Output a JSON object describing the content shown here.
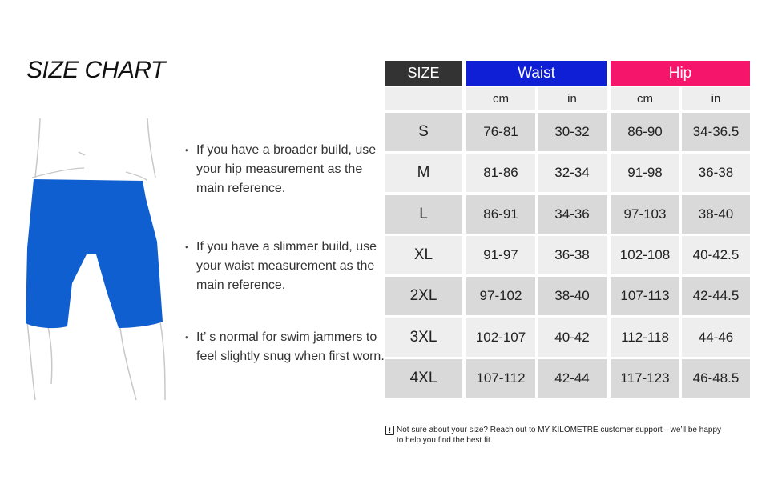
{
  "title": "SIZE CHART",
  "notes": [
    "If you have a broader build, use your hip measurement as the main reference.",
    "If you have a slimmer build, use your waist measurement as the main reference.",
    "It’ s normal for swim jammers to feel slightly snug when first worn."
  ],
  "bullet": "•",
  "table": {
    "headers": {
      "size": "SIZE",
      "waist": "Waist",
      "hip": "Hip"
    },
    "subheaders": [
      "cm",
      "in",
      "cm",
      "in"
    ],
    "rows": [
      [
        "S",
        "76-81",
        "30-32",
        "86-90",
        "34-36.5"
      ],
      [
        "M",
        "81-86",
        "32-34",
        "91-98",
        "36-38"
      ],
      [
        "L",
        "86-91",
        "34-36",
        "97-103",
        "38-40"
      ],
      [
        "XL",
        "91-97",
        "36-38",
        "102-108",
        "40-42.5"
      ],
      [
        "2XL",
        "97-102",
        "38-40",
        "107-113",
        "42-44.5"
      ],
      [
        "3XL",
        "102-107",
        "40-42",
        "112-118",
        "44-46"
      ],
      [
        "4XL",
        "107-112",
        "42-44",
        "117-123",
        "46-48.5"
      ]
    ]
  },
  "footnote": {
    "icon": "warning-icon",
    "text_line1": "Not sure about your size? Reach out to MY KILOMETRE customer support—we’ll be happy",
    "text_line2": "to help you find the best fit."
  },
  "colors": {
    "size_header": "#333333",
    "waist_header": "#0f1fd6",
    "hip_header": "#f5156b",
    "jammer": "#0f5fd0",
    "row_a": "#d9d9d9",
    "row_b": "#eeeeee"
  }
}
